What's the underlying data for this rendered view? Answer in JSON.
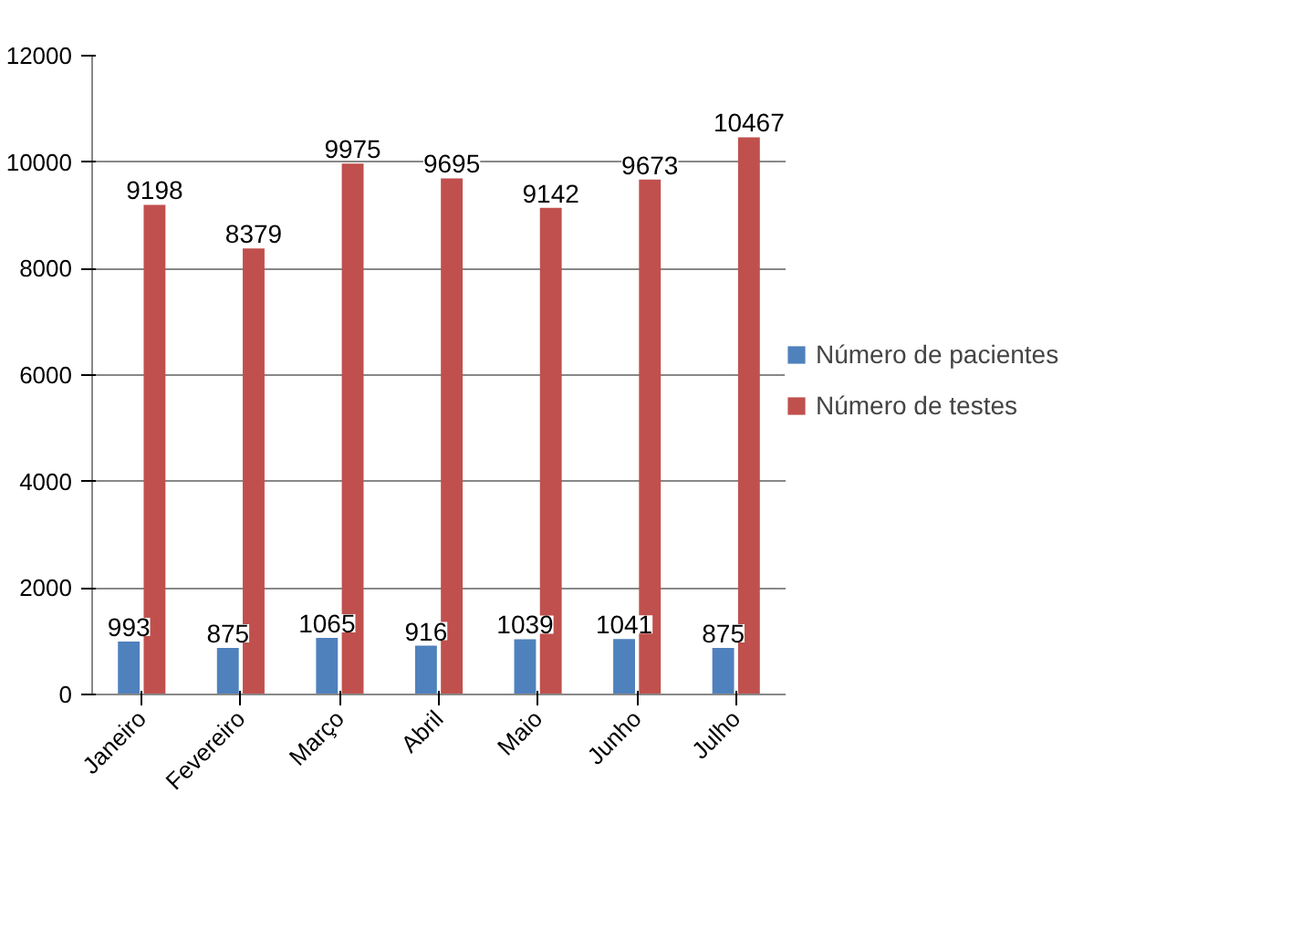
{
  "chart_data": {
    "type": "bar",
    "categories": [
      "Janeiro",
      "Fevereiro",
      "Março",
      "Abril",
      "Maio",
      "Junho",
      "Julho"
    ],
    "series": [
      {
        "name": "Número de pacientes",
        "color": "#4f81bd",
        "values": [
          993,
          875,
          1065,
          916,
          1039,
          1041,
          875
        ]
      },
      {
        "name": "Número de testes",
        "color": "#c0504d",
        "values": [
          9198,
          8379,
          9975,
          9695,
          9142,
          9673,
          10467
        ]
      }
    ],
    "ylim": [
      0,
      12000
    ],
    "yticks": [
      0,
      2000,
      4000,
      6000,
      8000,
      10000,
      12000
    ],
    "grid": "y",
    "legend": "right",
    "data_labels": true
  }
}
